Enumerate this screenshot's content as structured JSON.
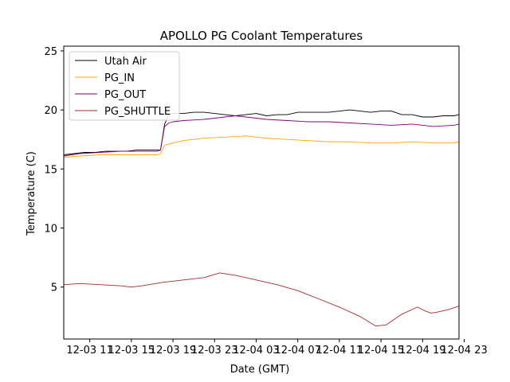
{
  "chart_data": {
    "type": "line",
    "title": "APOLLO PG Coolant Temperatures",
    "xlabel": "Date (GMT)",
    "ylabel": "Temperature (C)",
    "xlim": [
      8.5,
      46.5
    ],
    "ylim": [
      0.6,
      25.4
    ],
    "x_unit": "hours since 12-03 00:00 GMT",
    "x_ticks": [
      {
        "value": 11,
        "label": "12-03 11"
      },
      {
        "value": 15,
        "label": "12-03 15"
      },
      {
        "value": 19,
        "label": "12-03 19"
      },
      {
        "value": 23,
        "label": "12-03 23"
      },
      {
        "value": 27,
        "label": "12-04 03"
      },
      {
        "value": 31,
        "label": "12-04 07"
      },
      {
        "value": 35,
        "label": "12-04 11"
      },
      {
        "value": 39,
        "label": "12-04 15"
      },
      {
        "value": 43,
        "label": "12-04 19"
      },
      {
        "value": 47,
        "label": "12-04 23"
      }
    ],
    "y_ticks": [
      {
        "value": 5,
        "label": "5"
      },
      {
        "value": 10,
        "label": "10"
      },
      {
        "value": 15,
        "label": "15"
      },
      {
        "value": 20,
        "label": "20"
      },
      {
        "value": 25,
        "label": "25"
      }
    ],
    "legend_position": "upper-left",
    "series": [
      {
        "name": "Utah Air",
        "color": "#000000",
        "x": [
          8.5,
          9.5,
          10.5,
          11.5,
          12.5,
          13.5,
          14.5,
          15.5,
          16.5,
          17.5,
          17.8,
          18.2,
          18.6,
          19.0,
          20.0,
          21.0,
          22.0,
          23.0,
          24.0,
          25.0,
          26.0,
          27.0,
          28.0,
          29.0,
          30.0,
          31.0,
          32.0,
          33.0,
          34.0,
          35.0,
          36.0,
          37.0,
          38.0,
          39.0,
          40.0,
          41.0,
          42.0,
          43.0,
          44.0,
          45.0,
          46.0,
          46.5
        ],
        "values": [
          16.2,
          16.3,
          16.4,
          16.4,
          16.5,
          16.5,
          16.5,
          16.6,
          16.6,
          16.6,
          16.6,
          18.8,
          19.6,
          19.7,
          19.7,
          19.8,
          19.8,
          19.7,
          19.6,
          19.5,
          19.6,
          19.7,
          19.5,
          19.6,
          19.6,
          19.8,
          19.8,
          19.8,
          19.8,
          19.9,
          20.0,
          19.9,
          19.8,
          19.9,
          19.9,
          19.6,
          19.6,
          19.4,
          19.4,
          19.5,
          19.5,
          19.6
        ]
      },
      {
        "name": "PG_IN",
        "color": "#ffa500",
        "x": [
          8.5,
          10.0,
          12.0,
          14.0,
          16.0,
          17.5,
          17.8,
          18.2,
          18.6,
          19.0,
          20.0,
          22.0,
          24.0,
          26.0,
          27.0,
          28.0,
          30.0,
          32.0,
          34.0,
          36.0,
          38.0,
          40.0,
          42.0,
          44.0,
          46.0,
          46.5
        ],
        "values": [
          16.0,
          16.1,
          16.2,
          16.2,
          16.2,
          16.2,
          16.3,
          17.0,
          17.1,
          17.2,
          17.4,
          17.6,
          17.7,
          17.8,
          17.7,
          17.6,
          17.5,
          17.4,
          17.3,
          17.3,
          17.2,
          17.2,
          17.3,
          17.2,
          17.2,
          17.3
        ]
      },
      {
        "name": "PG_OUT",
        "color": "#800080",
        "x": [
          8.5,
          10.0,
          12.0,
          14.0,
          16.0,
          17.5,
          17.8,
          18.2,
          18.6,
          19.0,
          20.0,
          22.0,
          24.0,
          25.0,
          26.0,
          27.0,
          28.0,
          30.0,
          32.0,
          34.0,
          36.0,
          38.0,
          40.0,
          42.0,
          44.0,
          46.0,
          46.5
        ],
        "values": [
          16.1,
          16.3,
          16.4,
          16.5,
          16.5,
          16.5,
          16.6,
          18.6,
          18.9,
          19.0,
          19.1,
          19.2,
          19.4,
          19.5,
          19.4,
          19.3,
          19.2,
          19.1,
          19.0,
          19.0,
          18.9,
          18.8,
          18.7,
          18.8,
          18.6,
          18.7,
          18.8
        ]
      },
      {
        "name": "PG_SHUTTLE",
        "color": "#a52a2a",
        "x": [
          8.5,
          10.0,
          12.0,
          14.0,
          15.0,
          16.0,
          18.0,
          20.0,
          22.0,
          23.5,
          25.0,
          27.0,
          29.0,
          31.0,
          33.0,
          35.0,
          37.0,
          38.5,
          39.5,
          41.0,
          42.5,
          43.2,
          43.8,
          44.5,
          45.5,
          46.5
        ],
        "values": [
          5.2,
          5.3,
          5.2,
          5.1,
          5.0,
          5.1,
          5.4,
          5.6,
          5.8,
          6.2,
          6.0,
          5.6,
          5.2,
          4.7,
          4.0,
          3.3,
          2.5,
          1.7,
          1.8,
          2.7,
          3.3,
          3.0,
          2.8,
          2.9,
          3.1,
          3.4
        ]
      }
    ]
  }
}
